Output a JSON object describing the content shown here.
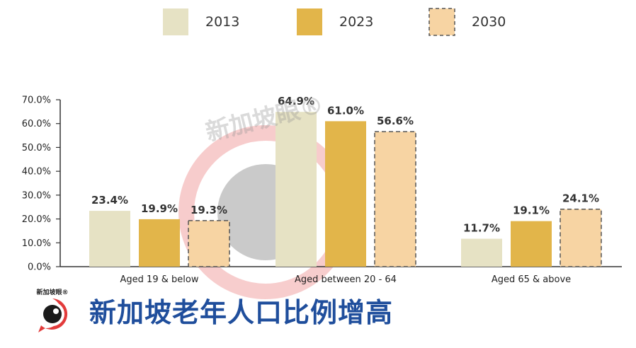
{
  "legend": [
    {
      "label": "2013",
      "color": "#e6e2c4",
      "dashed": false
    },
    {
      "label": "2023",
      "color": "#e2b54a",
      "dashed": false
    },
    {
      "label": "2030",
      "color": "#f7d4a3",
      "dashed": true
    }
  ],
  "caption": "新加坡老年人口比例增高",
  "watermark": {
    "text": "新加坡眼®",
    "logo_text": "新加坡眼®"
  },
  "chart_data": {
    "type": "bar",
    "categories": [
      "Aged 19 & below",
      "Aged between 20 - 64",
      "Aged 65 & above"
    ],
    "series": [
      {
        "name": "2013",
        "values": [
          23.4,
          64.9,
          11.7
        ],
        "labels": [
          "23.4%",
          "64.9%",
          "11.7%"
        ]
      },
      {
        "name": "2023",
        "values": [
          19.9,
          61.0,
          19.1
        ],
        "labels": [
          "19.9%",
          "61.0%",
          "19.1%"
        ]
      },
      {
        "name": "2030",
        "values": [
          19.3,
          56.6,
          24.1
        ],
        "labels": [
          "19.3%",
          "56.6%",
          "24.1%"
        ]
      }
    ],
    "yticks": [
      "0.0%",
      "10.0%",
      "20.0%",
      "30.0%",
      "40.0%",
      "50.0%",
      "60.0%",
      "70.0%"
    ],
    "ylim": [
      0,
      70
    ],
    "legend_position": "top-center",
    "grid": false
  }
}
